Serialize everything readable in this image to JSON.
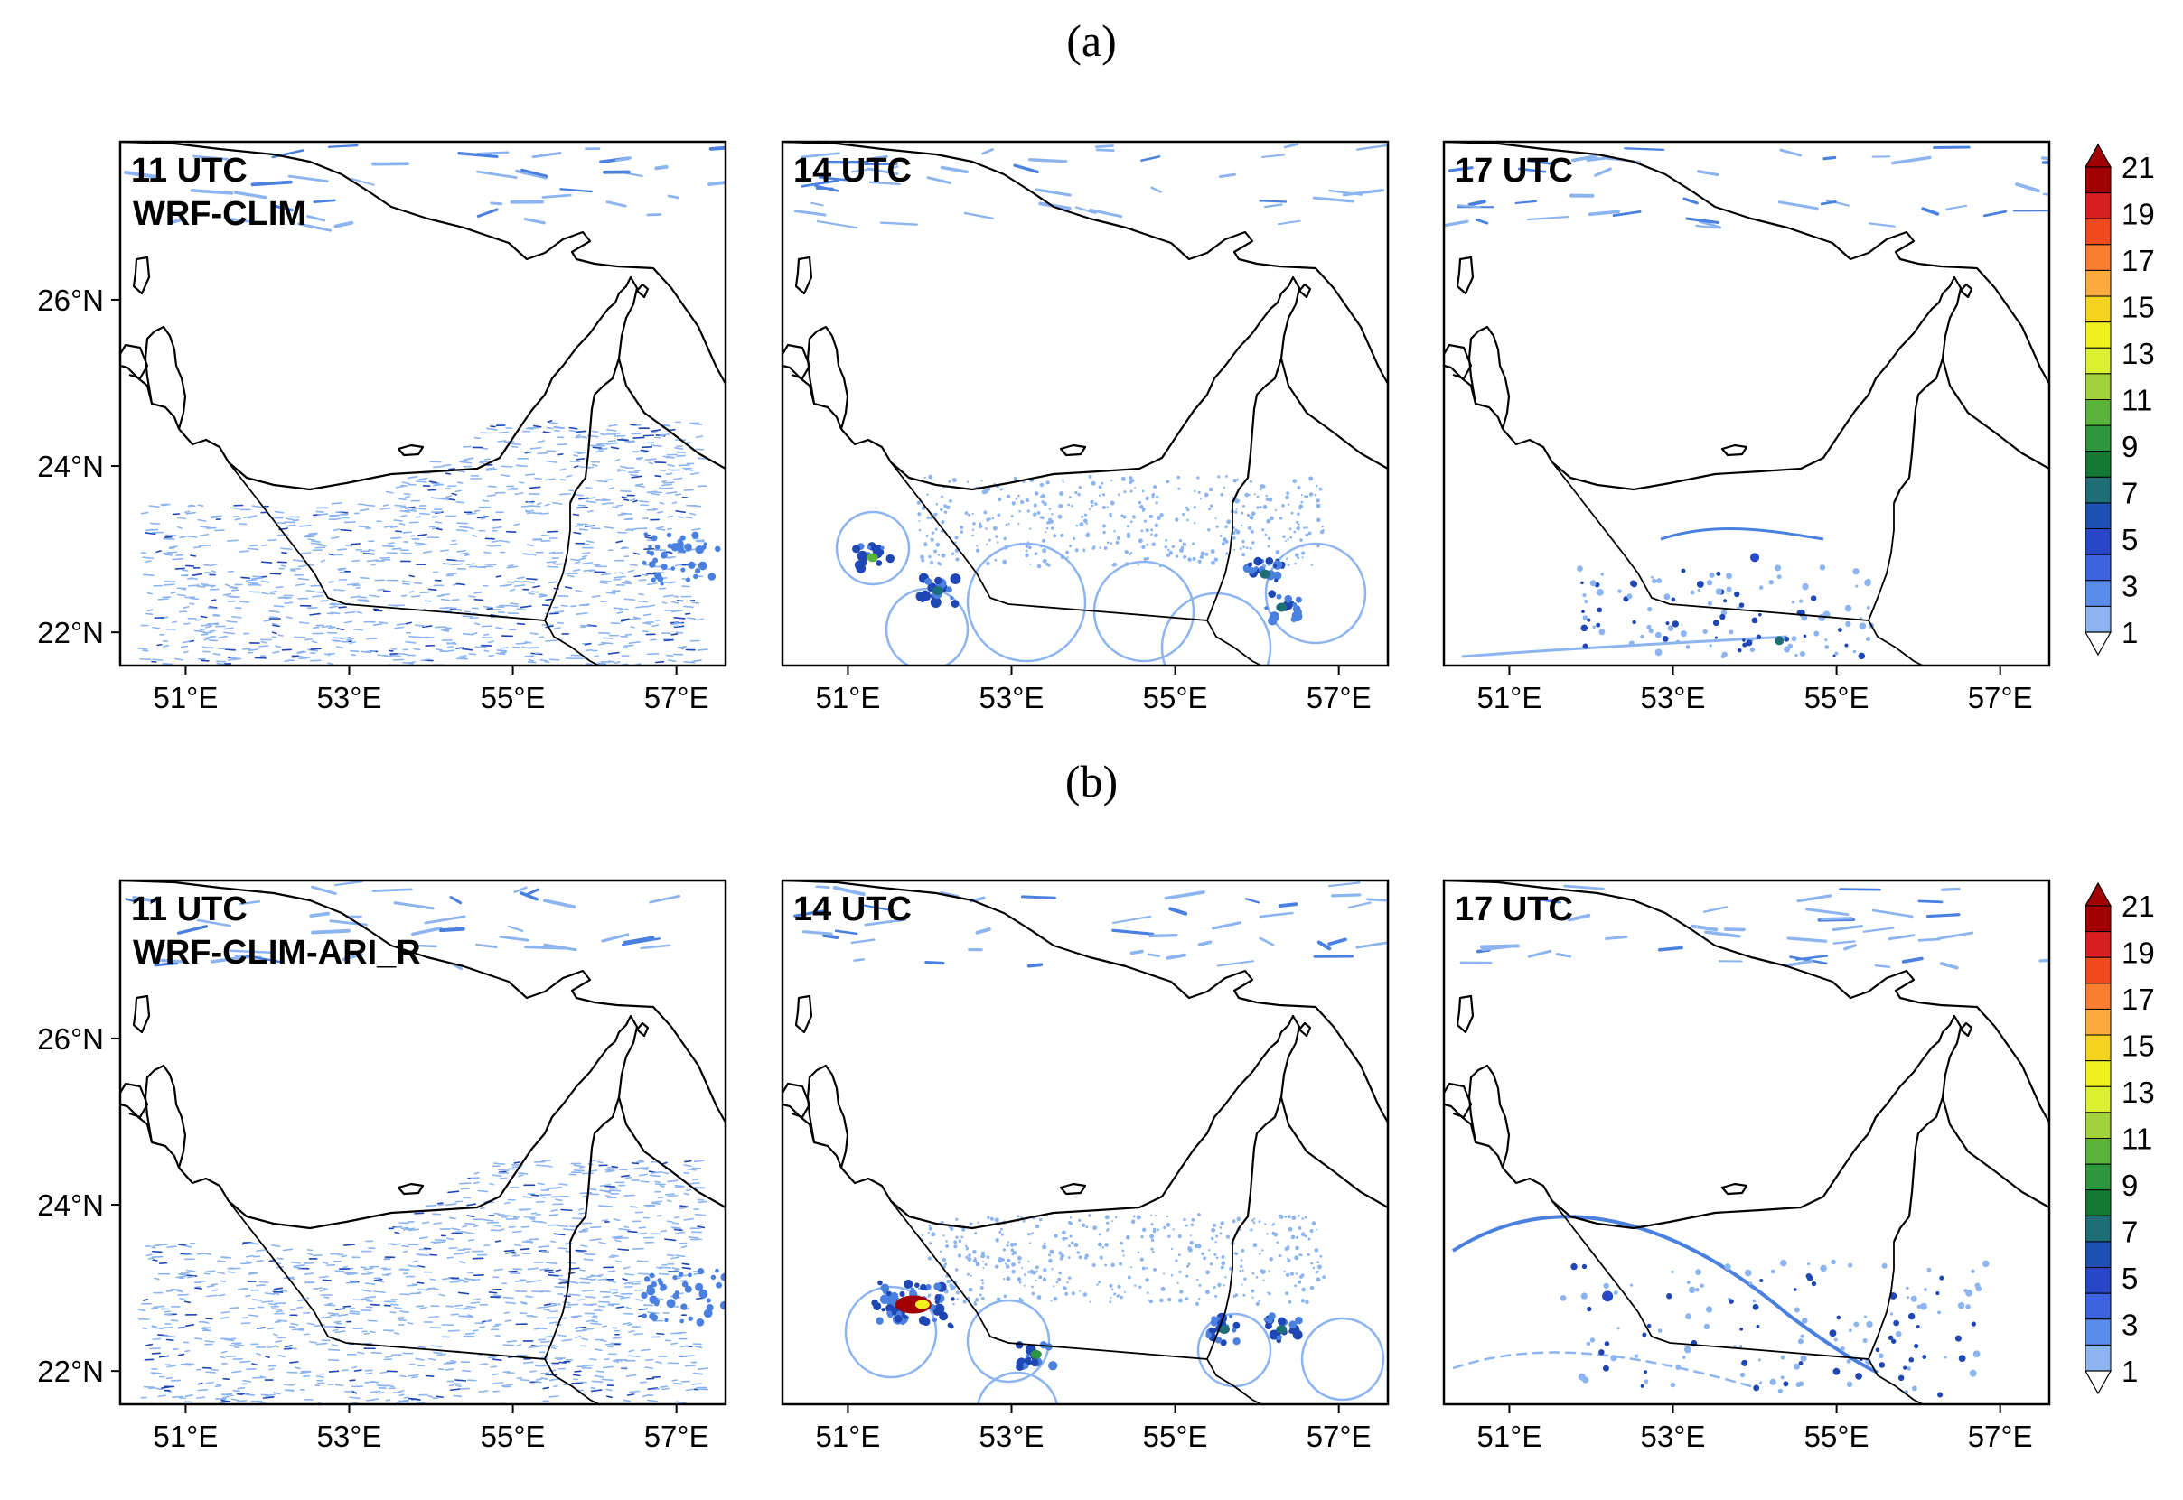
{
  "rows": [
    {
      "label": "(a)",
      "panels": [
        {
          "time": "11 UTC",
          "experiment": "WRF-CLIM",
          "pattern": "dense",
          "cells": []
        },
        {
          "time": "14 UTC",
          "experiment": "",
          "pattern": "rings",
          "cells": [
            {
              "lon": 51.3,
              "lat": 22.9,
              "level": 11
            },
            {
              "lon": 52.1,
              "lat": 22.5,
              "level": 7
            },
            {
              "lon": 56.1,
              "lat": 22.7,
              "level": 7
            },
            {
              "lon": 56.3,
              "lat": 22.3,
              "level": 7
            }
          ]
        },
        {
          "time": "17 UTC",
          "experiment": "",
          "pattern": "sparse",
          "cells": [
            {
              "lon": 54.0,
              "lat": 22.9,
              "level": 5
            },
            {
              "lon": 54.3,
              "lat": 21.9,
              "level": 7
            }
          ]
        }
      ]
    },
    {
      "label": "(b)",
      "panels": [
        {
          "time": "11 UTC",
          "experiment": "WRF-CLIM-ARI_R",
          "pattern": "dense",
          "cells": []
        },
        {
          "time": "14 UTC",
          "experiment": "",
          "pattern": "rings-strong",
          "cells": [
            {
              "lon": 51.8,
              "lat": 22.8,
              "level": 21
            },
            {
              "lon": 53.3,
              "lat": 22.2,
              "level": 9
            },
            {
              "lon": 55.6,
              "lat": 22.5,
              "level": 7
            },
            {
              "lon": 56.3,
              "lat": 22.5,
              "level": 7
            }
          ]
        },
        {
          "time": "17 UTC",
          "experiment": "",
          "pattern": "arc",
          "cells": [
            {
              "lon": 52.2,
              "lat": 22.9,
              "level": 5
            }
          ]
        }
      ]
    }
  ],
  "axes": {
    "lon_ticks": [
      "51°E",
      "53°E",
      "55°E",
      "57°E"
    ],
    "lon_values": [
      51,
      53,
      55,
      57
    ],
    "lat_ticks": [
      "26°N",
      "24°N",
      "22°N"
    ],
    "lat_values": [
      26,
      24,
      22
    ],
    "lon_range": [
      50.2,
      57.6
    ],
    "lat_range": [
      21.6,
      27.9
    ]
  },
  "colorbar": {
    "labels": [
      "21",
      "19",
      "17",
      "15",
      "13",
      "11",
      "9",
      "7",
      "5",
      "3",
      "1"
    ],
    "colors": [
      "#a00000",
      "#d81e1e",
      "#f04a1e",
      "#fa7d32",
      "#fcaa3c",
      "#f5d21e",
      "#f0f01e",
      "#dcf032",
      "#a0d23c",
      "#5ab43c",
      "#2d963c",
      "#147832",
      "#1e6e78",
      "#1e50b4",
      "#2846c8",
      "#3c64e1",
      "#5a8ceb",
      "#8cb4f0"
    ],
    "extend": "both"
  },
  "palette": {
    "field_light": "#8cb4f0",
    "field_mid": "#4a80e0",
    "field_dark": "#1e46b4"
  }
}
